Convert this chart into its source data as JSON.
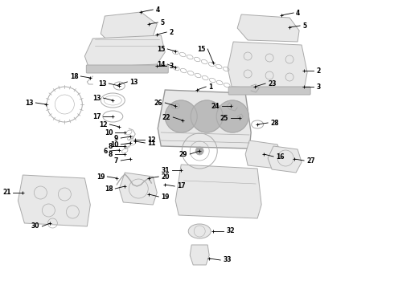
{
  "bg_color": "#ffffff",
  "lc": "#aaaaaa",
  "tc": "#000000",
  "fc": "#e8e8e8",
  "fc2": "#d0d0d0",
  "lw": 0.7,
  "label_fs": 5.5,
  "figsize": [
    4.9,
    3.6
  ],
  "dpi": 100
}
